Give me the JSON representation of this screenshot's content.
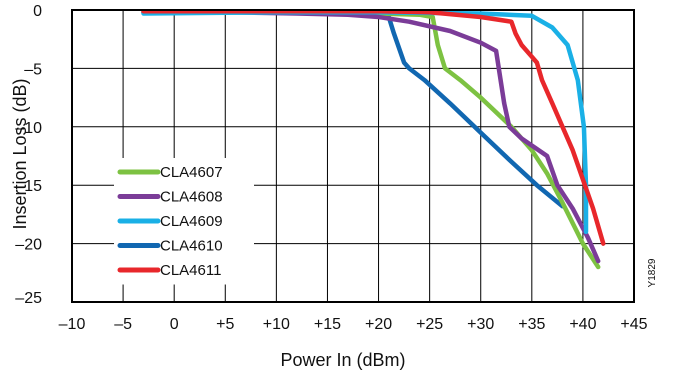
{
  "chart_data": {
    "type": "line",
    "xlabel": "Power In (dBm)",
    "ylabel": "Insertion Loss (dB)",
    "xlim": [
      -10,
      45
    ],
    "ylim": [
      -25,
      0
    ],
    "x_ticks": [
      -10,
      -5,
      0,
      5,
      10,
      15,
      20,
      25,
      30,
      35,
      40,
      45
    ],
    "x_tick_labels": [
      "–10",
      "–5",
      "0",
      "+5",
      "+10",
      "+15",
      "+20",
      "+25",
      "+30",
      "+35",
      "+40",
      "+45"
    ],
    "y_ticks": [
      0,
      -5,
      -10,
      -15,
      -20,
      -25
    ],
    "y_tick_labels": [
      "0",
      "–5",
      "–10",
      "–15",
      "–20",
      "–25"
    ],
    "grid": true,
    "legend_position": "bottom-left",
    "figure_code": "Y1829",
    "series": [
      {
        "name": "CLA4607",
        "color": "#7dc242",
        "points": [
          [
            -3,
            -0.2
          ],
          [
            10,
            -0.2
          ],
          [
            20,
            -0.3
          ],
          [
            24,
            -0.4
          ],
          [
            25.3,
            -0.6
          ],
          [
            25.8,
            -3.0
          ],
          [
            26.5,
            -5.0
          ],
          [
            28,
            -6.0
          ],
          [
            30,
            -7.5
          ],
          [
            33,
            -10.0
          ],
          [
            35,
            -12.0
          ],
          [
            36.5,
            -14.0
          ],
          [
            38,
            -16.5
          ],
          [
            40,
            -20.0
          ],
          [
            41.5,
            -22.0
          ]
        ]
      },
      {
        "name": "CLA4608",
        "color": "#7b3c98",
        "points": [
          [
            -3,
            -0.2
          ],
          [
            5,
            -0.2
          ],
          [
            12,
            -0.3
          ],
          [
            17,
            -0.4
          ],
          [
            20,
            -0.6
          ],
          [
            23,
            -1.0
          ],
          [
            27,
            -1.8
          ],
          [
            30,
            -2.8
          ],
          [
            31.5,
            -3.5
          ],
          [
            32.3,
            -8.0
          ],
          [
            32.8,
            -10.0
          ],
          [
            34,
            -11.0
          ],
          [
            36.5,
            -12.5
          ],
          [
            37.5,
            -15.0
          ],
          [
            39,
            -17.0
          ],
          [
            40.5,
            -19.5
          ],
          [
            41.5,
            -21.5
          ]
        ]
      },
      {
        "name": "CLA4609",
        "color": "#1ab0e6",
        "points": [
          [
            -3,
            -0.3
          ],
          [
            10,
            -0.2
          ],
          [
            20,
            -0.2
          ],
          [
            30,
            -0.3
          ],
          [
            35,
            -0.5
          ],
          [
            37,
            -1.5
          ],
          [
            38.5,
            -3.0
          ],
          [
            39.5,
            -6.0
          ],
          [
            40.1,
            -10.0
          ],
          [
            40.3,
            -15.0
          ],
          [
            40.3,
            -19.0
          ]
        ]
      },
      {
        "name": "CLA4610",
        "color": "#1167b1",
        "points": [
          [
            -3,
            -0.2
          ],
          [
            10,
            -0.2
          ],
          [
            19,
            -0.3
          ],
          [
            21,
            -0.6
          ],
          [
            21.5,
            -2.0
          ],
          [
            22.5,
            -4.5
          ],
          [
            23,
            -5.0
          ],
          [
            24.5,
            -6.0
          ],
          [
            27,
            -8.0
          ],
          [
            30,
            -10.5
          ],
          [
            33,
            -13.0
          ],
          [
            35.5,
            -15.0
          ],
          [
            38,
            -16.8
          ]
        ]
      },
      {
        "name": "CLA4611",
        "color": "#e8272b",
        "points": [
          [
            -3,
            -0.1
          ],
          [
            10,
            -0.1
          ],
          [
            20,
            -0.1
          ],
          [
            25,
            -0.2
          ],
          [
            30,
            -0.6
          ],
          [
            33,
            -1.0
          ],
          [
            33.4,
            -2.0
          ],
          [
            34,
            -3.0
          ],
          [
            35,
            -4.0
          ],
          [
            35.5,
            -4.5
          ],
          [
            36,
            -6.0
          ],
          [
            37,
            -8.0
          ],
          [
            39,
            -12.0
          ],
          [
            41,
            -17.0
          ],
          [
            42,
            -20.0
          ]
        ]
      }
    ]
  }
}
